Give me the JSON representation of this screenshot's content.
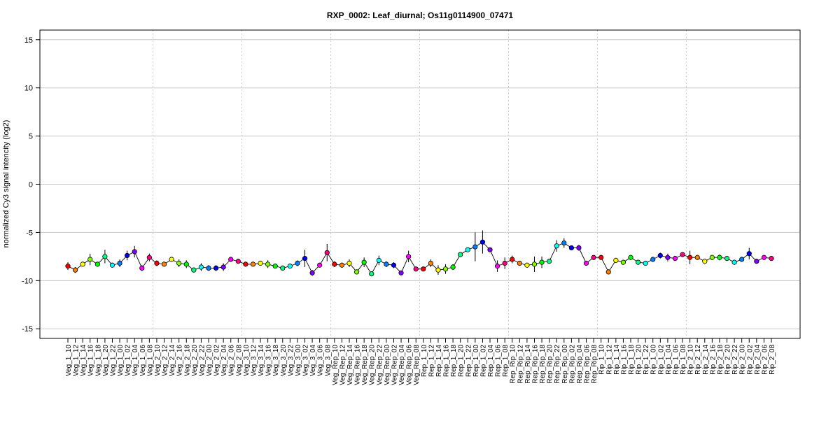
{
  "chart_data": {
    "type": "line",
    "title": "RXP_0002: Leaf_diurnal; Os11g0114900_07471",
    "ylabel": "normalized Cy3 signal intencity (log2)",
    "xlabel": "",
    "ylim": [
      -16,
      16
    ],
    "yticks": [
      -15,
      -10,
      -5,
      0,
      5,
      10,
      15
    ],
    "grid": true,
    "legend": "none",
    "categories": [
      "Veg_1_10",
      "Veg_1_12",
      "Veg_1_14",
      "Veg_1_16",
      "Veg_1_18",
      "Veg_1_20",
      "Veg_1_22",
      "Veg_1_00",
      "Veg_1_02",
      "Veg_1_04",
      "Veg_1_06",
      "Veg_1_08",
      "Veg_2_10",
      "Veg_2_12",
      "Veg_2_14",
      "Veg_2_16",
      "Veg_2_18",
      "Veg_2_20",
      "Veg_2_22",
      "Veg_2_00",
      "Veg_2_02",
      "Veg_2_04",
      "Veg_2_06",
      "Veg_2_08",
      "Veg_3_10",
      "Veg_3_12",
      "Veg_3_14",
      "Veg_3_16",
      "Veg_3_18",
      "Veg_3_20",
      "Veg_3_22",
      "Veg_3_00",
      "Veg_3_02",
      "Veg_3_04",
      "Veg_3_06",
      "Veg_3_08",
      "Veg_Rep_10",
      "Veg_Rep_12",
      "Veg_Rep_14",
      "Veg_Rep_16",
      "Veg_Rep_18",
      "Veg_Rep_20",
      "Veg_Rep_22",
      "Veg_Rep_00",
      "Veg_Rep_02",
      "Veg_Rep_04",
      "Veg_Rep_06",
      "Veg_Rep_08",
      "Rep_1_10",
      "Rep_1_12",
      "Rep_1_14",
      "Rep_1_16",
      "Rep_1_18",
      "Rep_1_20",
      "Rep_1_22",
      "Rep_1_00",
      "Rep_1_02",
      "Rep_1_04",
      "Rep_1_06",
      "Rep_1_08",
      "Rep_Rip_10",
      "Rep_Rip_12",
      "Rep_Rip_14",
      "Rep_Rip_16",
      "Rep_Rip_18",
      "Rep_Rip_20",
      "Rep_Rip_22",
      "Rep_Rip_00",
      "Rep_Rip_02",
      "Rep_Rip_04",
      "Rep_Rip_06",
      "Rep_Rip_08",
      "Rip_1_10",
      "Rip_1_12",
      "Rip_1_14",
      "Rip_1_16",
      "Rip_1_18",
      "Rip_1_20",
      "Rip_1_22",
      "Rip_1_00",
      "Rip_1_02",
      "Rip_1_04",
      "Rip_1_06",
      "Rip_1_08",
      "Rip_2_10",
      "Rip_2_12",
      "Rip_2_14",
      "Rip_2_16",
      "Rip_2_18",
      "Rip_2_20",
      "Rip_2_22",
      "Rip_2_00",
      "Rip_2_02",
      "Rip_2_04",
      "Rip_2_06",
      "Rip_2_08"
    ],
    "values": [
      -8.5,
      -8.9,
      -8.3,
      -7.8,
      -8.3,
      -7.5,
      -8.4,
      -8.2,
      -7.4,
      -7.0,
      -8.7,
      -7.6,
      -8.2,
      -8.3,
      -7.8,
      -8.2,
      -8.3,
      -8.9,
      -8.6,
      -8.7,
      -8.7,
      -8.6,
      -7.8,
      -8.0,
      -8.3,
      -8.3,
      -8.2,
      -8.3,
      -8.5,
      -8.7,
      -8.5,
      -8.2,
      -7.7,
      -9.2,
      -8.4,
      -7.1,
      -8.3,
      -8.4,
      -8.2,
      -9.1,
      -8.1,
      -9.3,
      -7.9,
      -8.3,
      -8.4,
      -9.2,
      -7.5,
      -8.8,
      -8.8,
      -8.2,
      -8.9,
      -8.8,
      -8.6,
      -7.3,
      -6.8,
      -6.5,
      -6.0,
      -6.8,
      -8.5,
      -8.2,
      -7.8,
      -8.2,
      -8.4,
      -8.3,
      -8.1,
      -8.0,
      -6.4,
      -6.1,
      -6.6,
      -6.6,
      -8.2,
      -7.6,
      -7.6,
      -9.1,
      -7.9,
      -8.1,
      -7.6,
      -8.1,
      -8.2,
      -7.8,
      -7.4,
      -7.6,
      -7.7,
      -7.3,
      -7.6,
      -7.6,
      -8.0,
      -7.6,
      -7.6,
      -7.7,
      -8.1,
      -7.8,
      -7.2,
      -8.0,
      -7.6,
      -7.7
    ],
    "errors": [
      0.4,
      0.3,
      0.2,
      0.6,
      0.2,
      0.7,
      0.2,
      0.4,
      0.5,
      0.6,
      0.3,
      0.4,
      0.3,
      0.2,
      0.2,
      0.4,
      0.4,
      0.2,
      0.4,
      0.3,
      0.3,
      0.4,
      0.2,
      0.2,
      0.2,
      0.2,
      0.2,
      0.4,
      0.2,
      0.2,
      0.2,
      0.3,
      0.9,
      0.3,
      0.2,
      0.9,
      0.3,
      0.2,
      0.4,
      0.2,
      0.5,
      0.2,
      0.5,
      0.3,
      0.3,
      0.2,
      0.6,
      0.2,
      0.2,
      0.4,
      0.5,
      0.5,
      0.3,
      0.2,
      0.2,
      1.5,
      1.2,
      0.2,
      0.6,
      0.6,
      0.4,
      0.2,
      0.2,
      0.8,
      0.6,
      0.2,
      0.6,
      0.5,
      0.2,
      0.3,
      0.2,
      0.2,
      0.2,
      0.2,
      0.2,
      0.2,
      0.2,
      0.2,
      0.2,
      0.2,
      0.3,
      0.4,
      0.2,
      0.2,
      0.7,
      0.2,
      0.2,
      0.2,
      0.3,
      0.2,
      0.2,
      0.2,
      0.6,
      0.2,
      0.2,
      0.2
    ],
    "colors": [
      "#FF0000",
      "#FF8000",
      "#FFFF00",
      "#80FF00",
      "#00FF00",
      "#00FF80",
      "#00FFFF",
      "#0080FF",
      "#0000FF",
      "#8000FF",
      "#FF00FF",
      "#FF0080"
    ],
    "line_color": "#000000",
    "marker_outline": "#000000"
  }
}
